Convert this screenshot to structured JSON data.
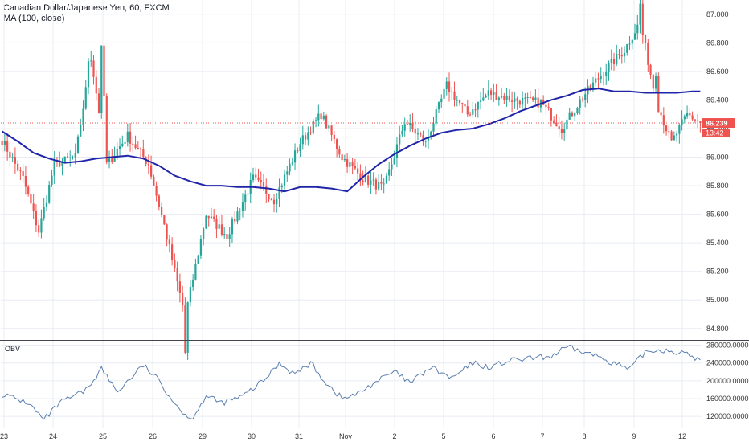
{
  "legend": {
    "title": "Canadian Dollar/Japanese Yen, 60, FXCM",
    "ma_label": "MA (100, close)"
  },
  "price_labels": {
    "last_price": "86.239",
    "countdown": "13:42"
  },
  "colors": {
    "up": "#26a69a",
    "down": "#ef5350",
    "ma": "#1f24a8",
    "obv": "#5b7fb0",
    "last_price_line": "#ef5350",
    "grid": "#e8ecf2",
    "axis": "#333333"
  },
  "icons": [
    "none"
  ],
  "chart_data": [
    {
      "type": "candlestick",
      "title": "Canadian Dollar/Japanese Yen, 60, FXCM",
      "x_tick_labels": [
        "23",
        "24",
        "25",
        "26",
        "29",
        "30",
        "31",
        "Nov",
        "2",
        "5",
        "6",
        "7",
        "8",
        "9",
        "12"
      ],
      "y_tick_labels": [
        "84.800",
        "85.000",
        "85.200",
        "85.400",
        "85.600",
        "85.800",
        "86.000",
        "86.200",
        "86.400",
        "86.600",
        "86.800",
        "87.000"
      ],
      "ylim": [
        84.72,
        87.1
      ],
      "grid": true,
      "last_value": 86.239,
      "anchors": [
        [
          0,
          86.12
        ],
        [
          8,
          85.85
        ],
        [
          14,
          85.48
        ],
        [
          20,
          85.95
        ],
        [
          28,
          86.0
        ],
        [
          34,
          86.7
        ],
        [
          40,
          85.95
        ],
        [
          48,
          86.15
        ],
        [
          56,
          85.95
        ],
        [
          62,
          85.52
        ],
        [
          70,
          84.88
        ],
        [
          78,
          85.6
        ],
        [
          86,
          85.45
        ],
        [
          96,
          85.85
        ],
        [
          104,
          85.7
        ],
        [
          114,
          86.1
        ],
        [
          122,
          86.3
        ],
        [
          130,
          86.0
        ],
        [
          138,
          85.85
        ],
        [
          146,
          85.78
        ],
        [
          154,
          86.25
        ],
        [
          162,
          86.1
        ],
        [
          170,
          86.5
        ],
        [
          178,
          86.3
        ],
        [
          186,
          86.45
        ],
        [
          196,
          86.4
        ],
        [
          206,
          86.38
        ],
        [
          214,
          86.2
        ],
        [
          222,
          86.42
        ],
        [
          230,
          86.6
        ],
        [
          238,
          86.75
        ],
        [
          244,
          86.95
        ],
        [
          250,
          86.4
        ],
        [
          256,
          86.1
        ],
        [
          262,
          86.3
        ],
        [
          267,
          86.239
        ]
      ],
      "series": [
        {
          "name": "MA (100, close)",
          "type": "line",
          "values": [
            [
              0,
              86.18
            ],
            [
              6,
              86.11
            ],
            [
              12,
              86.03
            ],
            [
              18,
              85.99
            ],
            [
              24,
              85.96
            ],
            [
              30,
              85.97
            ],
            [
              36,
              85.99
            ],
            [
              42,
              86.0
            ],
            [
              48,
              86.01
            ],
            [
              54,
              85.99
            ],
            [
              60,
              85.94
            ],
            [
              66,
              85.87
            ],
            [
              72,
              85.83
            ],
            [
              78,
              85.8
            ],
            [
              84,
              85.8
            ],
            [
              90,
              85.79
            ],
            [
              96,
              85.79
            ],
            [
              102,
              85.78
            ],
            [
              108,
              85.76
            ],
            [
              114,
              85.79
            ],
            [
              120,
              85.79
            ],
            [
              126,
              85.78
            ],
            [
              132,
              85.76
            ],
            [
              138,
              85.86
            ],
            [
              144,
              85.95
            ],
            [
              150,
              86.02
            ],
            [
              156,
              86.08
            ],
            [
              162,
              86.13
            ],
            [
              168,
              86.17
            ],
            [
              174,
              86.19
            ],
            [
              180,
              86.2
            ],
            [
              186,
              86.23
            ],
            [
              192,
              86.27
            ],
            [
              198,
              86.32
            ],
            [
              204,
              86.36
            ],
            [
              210,
              86.4
            ],
            [
              216,
              86.43
            ],
            [
              222,
              86.47
            ],
            [
              228,
              86.48
            ],
            [
              234,
              86.46
            ],
            [
              240,
              86.46
            ],
            [
              246,
              86.45
            ],
            [
              252,
              86.45
            ],
            [
              258,
              86.45
            ],
            [
              264,
              86.46
            ],
            [
              267,
              86.46
            ]
          ]
        }
      ]
    },
    {
      "type": "line",
      "title": "OBV",
      "y_tick_labels": [
        "120000.0000",
        "160000.0000",
        "200000.0000",
        "240000.0000",
        "280000.0000"
      ],
      "ylim": [
        95000,
        290000
      ],
      "grid": true,
      "series": [
        {
          "name": "OBV",
          "values": [
            [
              0,
              170000
            ],
            [
              10,
              150000
            ],
            [
              16,
              112000
            ],
            [
              22,
              150000
            ],
            [
              32,
              178000
            ],
            [
              38,
              228000
            ],
            [
              44,
              175000
            ],
            [
              54,
              235000
            ],
            [
              60,
              200000
            ],
            [
              66,
              150000
            ],
            [
              72,
              112000
            ],
            [
              78,
              165000
            ],
            [
              84,
              150000
            ],
            [
              92,
              165000
            ],
            [
              100,
              200000
            ],
            [
              106,
              240000
            ],
            [
              112,
              215000
            ],
            [
              118,
              240000
            ],
            [
              124,
              195000
            ],
            [
              130,
              160000
            ],
            [
              136,
              170000
            ],
            [
              142,
              195000
            ],
            [
              150,
              220000
            ],
            [
              156,
              195000
            ],
            [
              164,
              230000
            ],
            [
              172,
              205000
            ],
            [
              180,
              240000
            ],
            [
              186,
              230000
            ],
            [
              194,
              245000
            ],
            [
              202,
              250000
            ],
            [
              210,
              255000
            ],
            [
              216,
              275000
            ],
            [
              222,
              265000
            ],
            [
              228,
              255000
            ],
            [
              234,
              240000
            ],
            [
              240,
              225000
            ],
            [
              246,
              265000
            ],
            [
              252,
              270000
            ],
            [
              258,
              265000
            ],
            [
              264,
              255000
            ],
            [
              267,
              245000
            ]
          ]
        }
      ]
    }
  ]
}
